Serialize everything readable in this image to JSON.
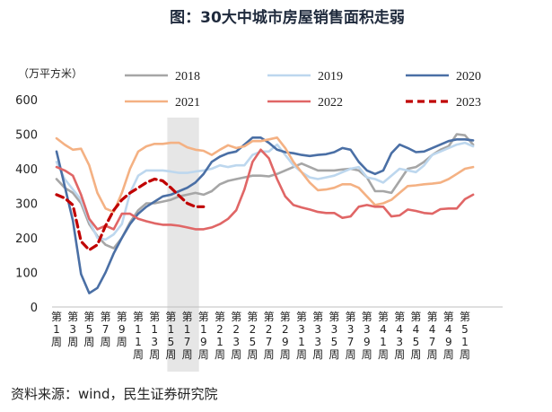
{
  "chart_data": {
    "type": "line",
    "title": "图：30大中城市房屋销售面积走弱",
    "ylabel": "（万平方米）",
    "ylim": [
      0,
      600
    ],
    "yticks": [
      0,
      100,
      200,
      300,
      400,
      500,
      600
    ],
    "xlabels": [
      "第1周",
      "第3周",
      "第5周",
      "第7周",
      "第9周",
      "第11周",
      "第13周",
      "第15周",
      "第17周",
      "第19周",
      "第21周",
      "第23周",
      "第25周",
      "第27周",
      "第29周",
      "第31周",
      "第33周",
      "第35周",
      "第37周",
      "第39周",
      "第41周",
      "第43周",
      "第45周",
      "第47周",
      "第49周",
      "第51周"
    ],
    "highlight_weeks": [
      15,
      18
    ],
    "legend_placement": "top",
    "series": [
      {
        "name": "2018",
        "color": "#a6a6a6",
        "dash": "solid",
        "values": [
          370,
          345,
          330,
          300,
          240,
          205,
          180,
          170,
          200,
          245,
          280,
          300,
          300,
          305,
          310,
          320,
          325,
          330,
          325,
          335,
          355,
          365,
          370,
          375,
          380,
          380,
          378,
          385,
          395,
          405,
          415,
          405,
          395,
          395,
          395,
          398,
          400,
          395,
          375,
          335,
          335,
          330,
          365,
          400,
          405,
          420,
          440,
          455,
          465,
          500,
          497,
          470
        ]
      },
      {
        "name": "2019",
        "color": "#bdd7ee",
        "dash": "solid",
        "values": [
          420,
          370,
          340,
          310,
          250,
          200,
          195,
          210,
          240,
          330,
          380,
          395,
          395,
          395,
          392,
          388,
          388,
          392,
          395,
          400,
          410,
          405,
          410,
          410,
          440,
          450,
          450,
          470,
          440,
          410,
          390,
          375,
          370,
          375,
          380,
          390,
          400,
          405,
          375,
          370,
          360,
          380,
          400,
          395,
          390,
          410,
          440,
          450,
          460,
          470,
          475,
          465
        ]
      },
      {
        "name": "2020",
        "color": "#4a6fa5",
        "dash": "solid",
        "values": [
          450,
          350,
          250,
          95,
          40,
          55,
          100,
          155,
          200,
          240,
          270,
          290,
          305,
          320,
          325,
          335,
          345,
          360,
          385,
          420,
          435,
          445,
          450,
          470,
          490,
          490,
          475,
          455,
          448,
          445,
          440,
          437,
          440,
          442,
          448,
          460,
          455,
          420,
          395,
          385,
          395,
          445,
          470,
          460,
          448,
          450,
          460,
          470,
          480,
          485,
          485,
          482
        ]
      },
      {
        "name": "2021",
        "color": "#f4b183",
        "dash": "solid",
        "values": [
          488,
          470,
          455,
          458,
          410,
          330,
          285,
          275,
          330,
          400,
          450,
          465,
          472,
          472,
          475,
          475,
          462,
          455,
          452,
          440,
          455,
          468,
          460,
          465,
          480,
          480,
          485,
          490,
          460,
          420,
          390,
          360,
          338,
          340,
          345,
          355,
          355,
          345,
          320,
          295,
          300,
          310,
          330,
          350,
          352,
          355,
          357,
          360,
          370,
          385,
          400,
          405
        ]
      },
      {
        "name": "2022",
        "color": "#e06666",
        "dash": "solid",
        "values": [
          405,
          395,
          380,
          325,
          255,
          225,
          235,
          225,
          270,
          270,
          255,
          248,
          242,
          238,
          238,
          235,
          230,
          225,
          225,
          230,
          240,
          255,
          280,
          340,
          420,
          455,
          430,
          370,
          320,
          295,
          288,
          282,
          275,
          272,
          272,
          258,
          262,
          290,
          295,
          290,
          290,
          262,
          265,
          282,
          278,
          272,
          270,
          283,
          285,
          285,
          312,
          325
        ]
      },
      {
        "name": "2023",
        "color": "#c00000",
        "dash": "dashed",
        "values": [
          325,
          315,
          295,
          190,
          165,
          180,
          235,
          280,
          310,
          330,
          345,
          360,
          370,
          365,
          345,
          322,
          300,
          290,
          290
        ]
      }
    ]
  },
  "source": "资料来源：wind，民生证券研究院"
}
